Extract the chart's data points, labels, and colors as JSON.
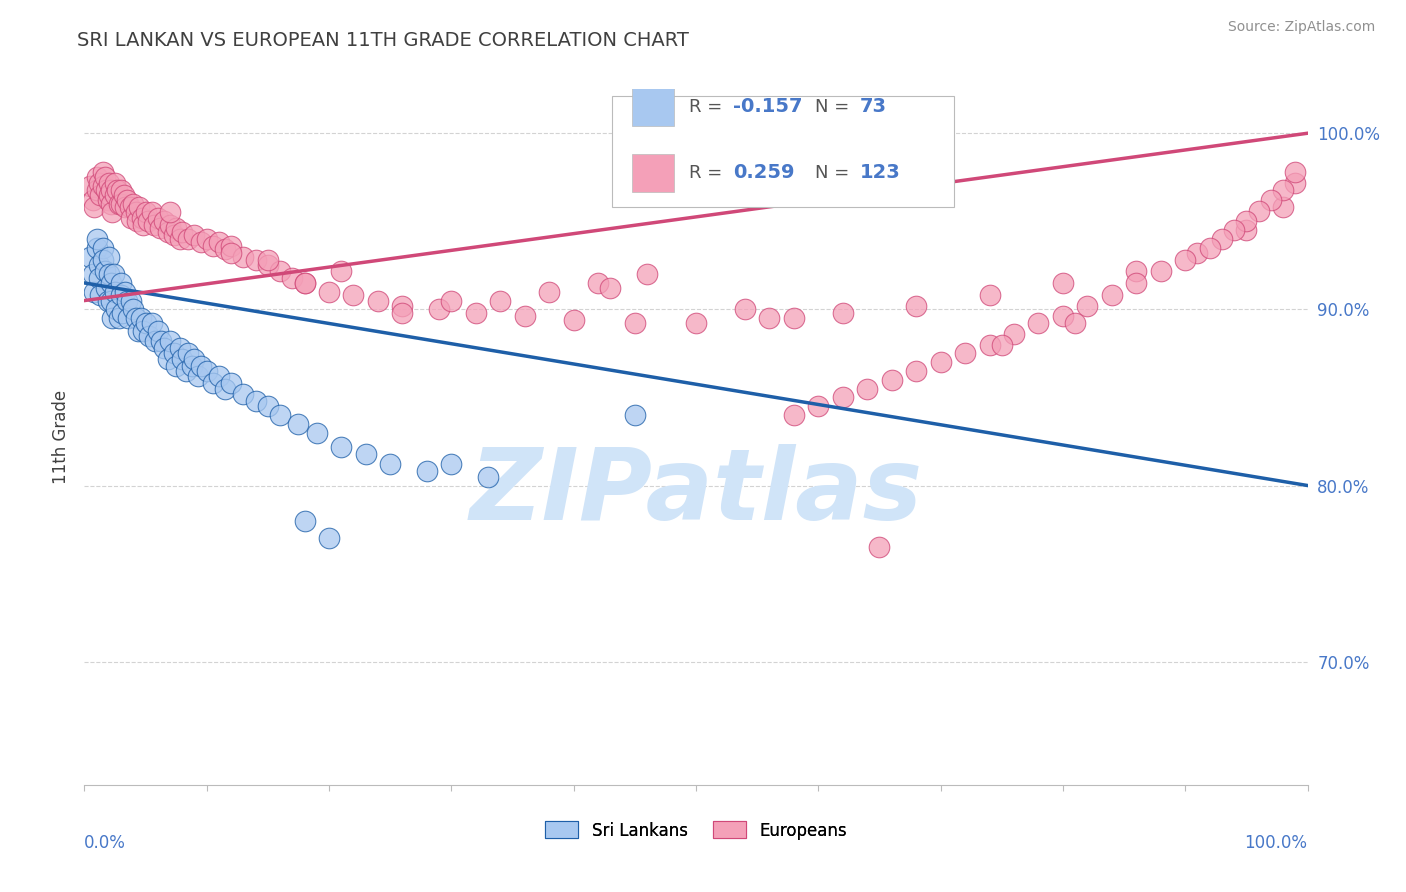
{
  "title": "SRI LANKAN VS EUROPEAN 11TH GRADE CORRELATION CHART",
  "source_text": "Source: ZipAtlas.com",
  "ylabel": "11th Grade",
  "y_tick_labels": [
    "70.0%",
    "80.0%",
    "90.0%",
    "100.0%"
  ],
  "y_tick_values": [
    0.7,
    0.8,
    0.9,
    1.0
  ],
  "legend_sri_r": "-0.157",
  "legend_sri_n": "73",
  "legend_eur_r": "0.259",
  "legend_eur_n": "123",
  "sri_color": "#A8C8F0",
  "eur_color": "#F4A0B8",
  "sri_line_color": "#1E5FA8",
  "eur_line_color": "#D04878",
  "watermark": "ZIPatlas",
  "watermark_color": "#D0E4F8",
  "background_color": "#FFFFFF",
  "grid_color": "#C8C8C8",
  "title_color": "#404040",
  "axis_label_color": "#4878C8",
  "source_color": "#909090",
  "xlim": [
    0.0,
    1.0
  ],
  "ylim": [
    0.63,
    1.025
  ],
  "sri_line_x0": 0.0,
  "sri_line_x1": 1.0,
  "sri_line_y0": 0.915,
  "sri_line_y1": 0.8,
  "eur_line_x0": 0.0,
  "eur_line_x1": 1.0,
  "eur_line_y0": 0.905,
  "eur_line_y1": 1.0,
  "sri_scatter_x": [
    0.005,
    0.007,
    0.008,
    0.01,
    0.01,
    0.012,
    0.012,
    0.013,
    0.015,
    0.015,
    0.017,
    0.018,
    0.019,
    0.02,
    0.02,
    0.022,
    0.022,
    0.023,
    0.024,
    0.025,
    0.026,
    0.028,
    0.03,
    0.03,
    0.031,
    0.033,
    0.035,
    0.036,
    0.038,
    0.04,
    0.042,
    0.044,
    0.046,
    0.048,
    0.05,
    0.053,
    0.055,
    0.058,
    0.06,
    0.063,
    0.065,
    0.068,
    0.07,
    0.073,
    0.075,
    0.078,
    0.08,
    0.083,
    0.085,
    0.088,
    0.09,
    0.093,
    0.095,
    0.1,
    0.105,
    0.11,
    0.115,
    0.12,
    0.13,
    0.14,
    0.15,
    0.16,
    0.175,
    0.19,
    0.21,
    0.23,
    0.25,
    0.28,
    0.3,
    0.33,
    0.18,
    0.2,
    0.45
  ],
  "sri_scatter_y": [
    0.93,
    0.92,
    0.91,
    0.935,
    0.94,
    0.925,
    0.918,
    0.908,
    0.935,
    0.928,
    0.922,
    0.912,
    0.905,
    0.93,
    0.92,
    0.915,
    0.905,
    0.895,
    0.92,
    0.91,
    0.9,
    0.895,
    0.915,
    0.908,
    0.898,
    0.91,
    0.905,
    0.895,
    0.905,
    0.9,
    0.895,
    0.888,
    0.895,
    0.888,
    0.892,
    0.885,
    0.892,
    0.882,
    0.888,
    0.882,
    0.878,
    0.872,
    0.882,
    0.875,
    0.868,
    0.878,
    0.872,
    0.865,
    0.875,
    0.868,
    0.872,
    0.862,
    0.868,
    0.865,
    0.858,
    0.862,
    0.855,
    0.858,
    0.852,
    0.848,
    0.845,
    0.84,
    0.835,
    0.83,
    0.822,
    0.818,
    0.812,
    0.808,
    0.812,
    0.805,
    0.78,
    0.77,
    0.84
  ],
  "eur_scatter_x": [
    0.005,
    0.007,
    0.008,
    0.01,
    0.01,
    0.012,
    0.013,
    0.015,
    0.015,
    0.017,
    0.018,
    0.019,
    0.02,
    0.02,
    0.022,
    0.022,
    0.023,
    0.025,
    0.025,
    0.027,
    0.028,
    0.03,
    0.03,
    0.032,
    0.033,
    0.035,
    0.037,
    0.038,
    0.04,
    0.042,
    0.043,
    0.045,
    0.047,
    0.048,
    0.05,
    0.052,
    0.055,
    0.057,
    0.06,
    0.062,
    0.065,
    0.068,
    0.07,
    0.073,
    0.075,
    0.078,
    0.08,
    0.085,
    0.09,
    0.095,
    0.1,
    0.105,
    0.11,
    0.115,
    0.12,
    0.13,
    0.14,
    0.15,
    0.16,
    0.17,
    0.18,
    0.2,
    0.22,
    0.24,
    0.26,
    0.29,
    0.32,
    0.36,
    0.4,
    0.45,
    0.5,
    0.56,
    0.62,
    0.68,
    0.74,
    0.8,
    0.86,
    0.91,
    0.95,
    0.98,
    0.99,
    0.99,
    0.98,
    0.97,
    0.96,
    0.95,
    0.94,
    0.93,
    0.92,
    0.9,
    0.88,
    0.86,
    0.84,
    0.82,
    0.8,
    0.78,
    0.76,
    0.74,
    0.72,
    0.7,
    0.68,
    0.66,
    0.64,
    0.62,
    0.6,
    0.58,
    0.34,
    0.38,
    0.42,
    0.46,
    0.26,
    0.3,
    0.12,
    0.15,
    0.75,
    0.81,
    0.18,
    0.21,
    0.54,
    0.58,
    0.43,
    0.07,
    0.65
  ],
  "eur_scatter_y": [
    0.97,
    0.962,
    0.958,
    0.975,
    0.968,
    0.972,
    0.965,
    0.978,
    0.97,
    0.975,
    0.968,
    0.962,
    0.972,
    0.965,
    0.968,
    0.96,
    0.955,
    0.972,
    0.965,
    0.968,
    0.96,
    0.968,
    0.96,
    0.965,
    0.958,
    0.962,
    0.958,
    0.952,
    0.96,
    0.955,
    0.95,
    0.958,
    0.952,
    0.948,
    0.955,
    0.95,
    0.955,
    0.948,
    0.952,
    0.946,
    0.95,
    0.944,
    0.948,
    0.942,
    0.946,
    0.94,
    0.944,
    0.94,
    0.942,
    0.938,
    0.94,
    0.936,
    0.938,
    0.934,
    0.936,
    0.93,
    0.928,
    0.925,
    0.922,
    0.918,
    0.915,
    0.91,
    0.908,
    0.905,
    0.902,
    0.9,
    0.898,
    0.896,
    0.894,
    0.892,
    0.892,
    0.895,
    0.898,
    0.902,
    0.908,
    0.915,
    0.922,
    0.932,
    0.945,
    0.958,
    0.972,
    0.978,
    0.968,
    0.962,
    0.956,
    0.95,
    0.945,
    0.94,
    0.935,
    0.928,
    0.922,
    0.915,
    0.908,
    0.902,
    0.896,
    0.892,
    0.886,
    0.88,
    0.875,
    0.87,
    0.865,
    0.86,
    0.855,
    0.85,
    0.845,
    0.84,
    0.905,
    0.91,
    0.915,
    0.92,
    0.898,
    0.905,
    0.932,
    0.928,
    0.88,
    0.892,
    0.915,
    0.922,
    0.9,
    0.895,
    0.912,
    0.955,
    0.765
  ]
}
